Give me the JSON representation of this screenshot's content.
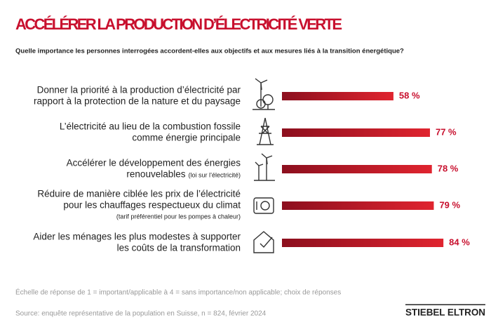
{
  "chart_data": {
    "type": "bar",
    "orientation": "horizontal",
    "title": "ACCÉLÉRER LA PRODUCTION D’ÉLECTRICITÉ VERTE",
    "subtitle": "Quelle importance les personnes interrogées accordent-elles aux objectifs et aux mesures liés à la transition énergétique?",
    "categories": [
      [
        "Donner la priorité à la production d’électricité par",
        "rapport à la protection de la nature et du paysage"
      ],
      [
        "L’électricité au lieu de la combustion fossile",
        "comme énergie principale"
      ],
      [
        "Accélérer le développement des énergies",
        "renouvelables"
      ],
      [
        "Réduire de manière ciblée les prix de l’électricité",
        "pour les chauffages respectueux du climat"
      ],
      [
        "Aider les ménages les plus modestes à supporter",
        "les coûts de la transformation"
      ]
    ],
    "category_notes": {
      "2": "(loi sur l’électricité)",
      "3": "(tarif préférentiel pour les pompes à chaleur)"
    },
    "values": [
      58,
      77,
      78,
      79,
      84
    ],
    "value_labels": [
      "58 %",
      "77 %",
      "78 %",
      "79 %",
      "84 %"
    ],
    "color": "#c8102e",
    "footnote": "Échelle de réponse de 1 = important/applicable à 4 = sans importance/non applicable; choix de réponses",
    "source": "Source: enquête représentative de la population en Suisse, n = 824, février 2024",
    "logo": "STIEBEL ELTRON"
  }
}
